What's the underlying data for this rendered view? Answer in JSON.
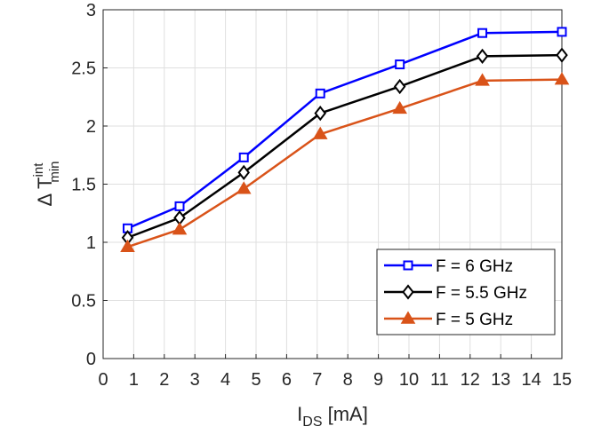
{
  "chart_data": {
    "type": "line",
    "xlabel": {
      "main": "I",
      "sub": "DS",
      "unit": " [mA]"
    },
    "ylabel": {
      "prefix": "Δ T",
      "sup": "int",
      "sub": "min"
    },
    "xlim": [
      0,
      15
    ],
    "ylim": [
      0,
      3
    ],
    "xticks": [
      "0",
      "1",
      "2",
      "3",
      "4",
      "5",
      "6",
      "7",
      "8",
      "9",
      "10",
      "11",
      "12",
      "13",
      "14",
      "15"
    ],
    "yticks": [
      "0",
      "0.5",
      "1",
      "1.5",
      "2",
      "2.5",
      "3"
    ],
    "grid": true,
    "legend_position": "bottom-right",
    "x": [
      0.8,
      2.5,
      4.6,
      7.1,
      9.7,
      12.4,
      15
    ],
    "series": [
      {
        "name": "F = 6 GHz",
        "color": "#0000ff",
        "marker": "square",
        "values": [
          1.12,
          1.31,
          1.73,
          2.28,
          2.53,
          2.8,
          2.81
        ]
      },
      {
        "name": "F = 5.5 GHz",
        "color": "#000000",
        "marker": "diamond",
        "values": [
          1.04,
          1.21,
          1.6,
          2.11,
          2.34,
          2.6,
          2.61
        ]
      },
      {
        "name": "F = 5 GHz",
        "color": "#d95319",
        "marker": "triangle",
        "values": [
          0.96,
          1.11,
          1.46,
          1.93,
          2.15,
          2.39,
          2.4
        ]
      }
    ]
  }
}
